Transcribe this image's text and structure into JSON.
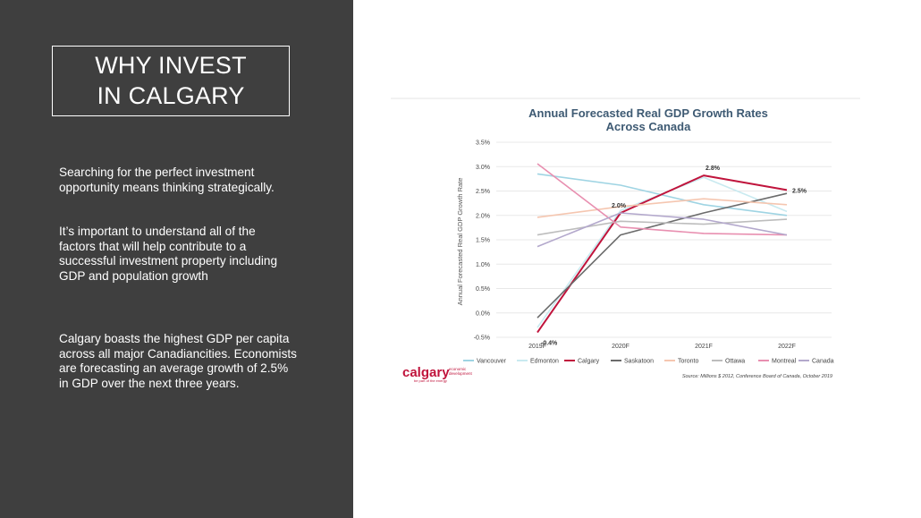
{
  "slide": {
    "title_line1": "WHY INVEST",
    "title_line2": "IN CALGARY",
    "paragraph1": "Searching for the perfect investment opportunity means thinking strategically.",
    "paragraph2": "It’s important to understand all of the factors that will help contribute to a successful investment property including GDP and population growth",
    "paragraph3": "Calgary boasts the highest GDP per capita across all major Canadiancities. Economists are forecasting an average growth of 2.5% in GDP over the next three years."
  },
  "logo": {
    "name": "calgary",
    "side_line1": "economic",
    "side_line2": "development",
    "tagline": "be part of the energy"
  },
  "chart_data": {
    "type": "line",
    "title": "Annual Forecasted Real GDP Growth Rates",
    "subtitle": "Across Canada",
    "xlabel": "",
    "ylabel": "Annual Forecasted Real GDP Growth Rate",
    "categories": [
      "2019F",
      "2020F",
      "2021F",
      "2022F"
    ],
    "ylim": [
      -0.5,
      3.5
    ],
    "yticks": [
      -0.5,
      0.0,
      0.5,
      1.0,
      1.5,
      2.0,
      2.5,
      3.0,
      3.5
    ],
    "ytick_labels": [
      "-0.5%",
      "0.0%",
      "0.5%",
      "1.0%",
      "1.5%",
      "2.0%",
      "2.5%",
      "3.0%",
      "3.5%"
    ],
    "grid": true,
    "legend_position": "bottom",
    "series": [
      {
        "name": "Vancouver",
        "color": "#9fd4e3",
        "values": [
          2.85,
          2.62,
          2.22,
          2.0
        ]
      },
      {
        "name": "Edmonton",
        "color": "#c9eaf0",
        "values": [
          -0.3,
          2.1,
          2.78,
          2.08
        ]
      },
      {
        "name": "Calgary",
        "color": "#c0143c",
        "values": [
          -0.4,
          2.05,
          2.82,
          2.52
        ]
      },
      {
        "name": "Saskatoon",
        "color": "#6b6b6b",
        "values": [
          -0.1,
          1.6,
          2.05,
          2.45
        ]
      },
      {
        "name": "Toronto",
        "color": "#f5c6b0",
        "values": [
          1.96,
          2.18,
          2.34,
          2.22
        ]
      },
      {
        "name": "Ottawa",
        "color": "#bdbdbd",
        "values": [
          1.6,
          1.88,
          1.82,
          1.92
        ]
      },
      {
        "name": "Montreal",
        "color": "#e88fb0",
        "values": [
          3.06,
          1.76,
          1.63,
          1.6
        ]
      },
      {
        "name": "Canada",
        "color": "#b3a8cc",
        "values": [
          1.36,
          2.05,
          1.92,
          1.6
        ]
      }
    ],
    "annotations": [
      {
        "label": "-0.4%",
        "category": "2019F",
        "value": -0.4
      },
      {
        "label": "2.0%",
        "category": "2020F",
        "value": 2.05
      },
      {
        "label": "2.8%",
        "category": "2021F",
        "value": 2.82
      },
      {
        "label": "2.5%",
        "category": "2022F",
        "value": 2.52
      }
    ],
    "source": "Source: Millions $ 2012, Conference Board of Canada, October 2019"
  }
}
